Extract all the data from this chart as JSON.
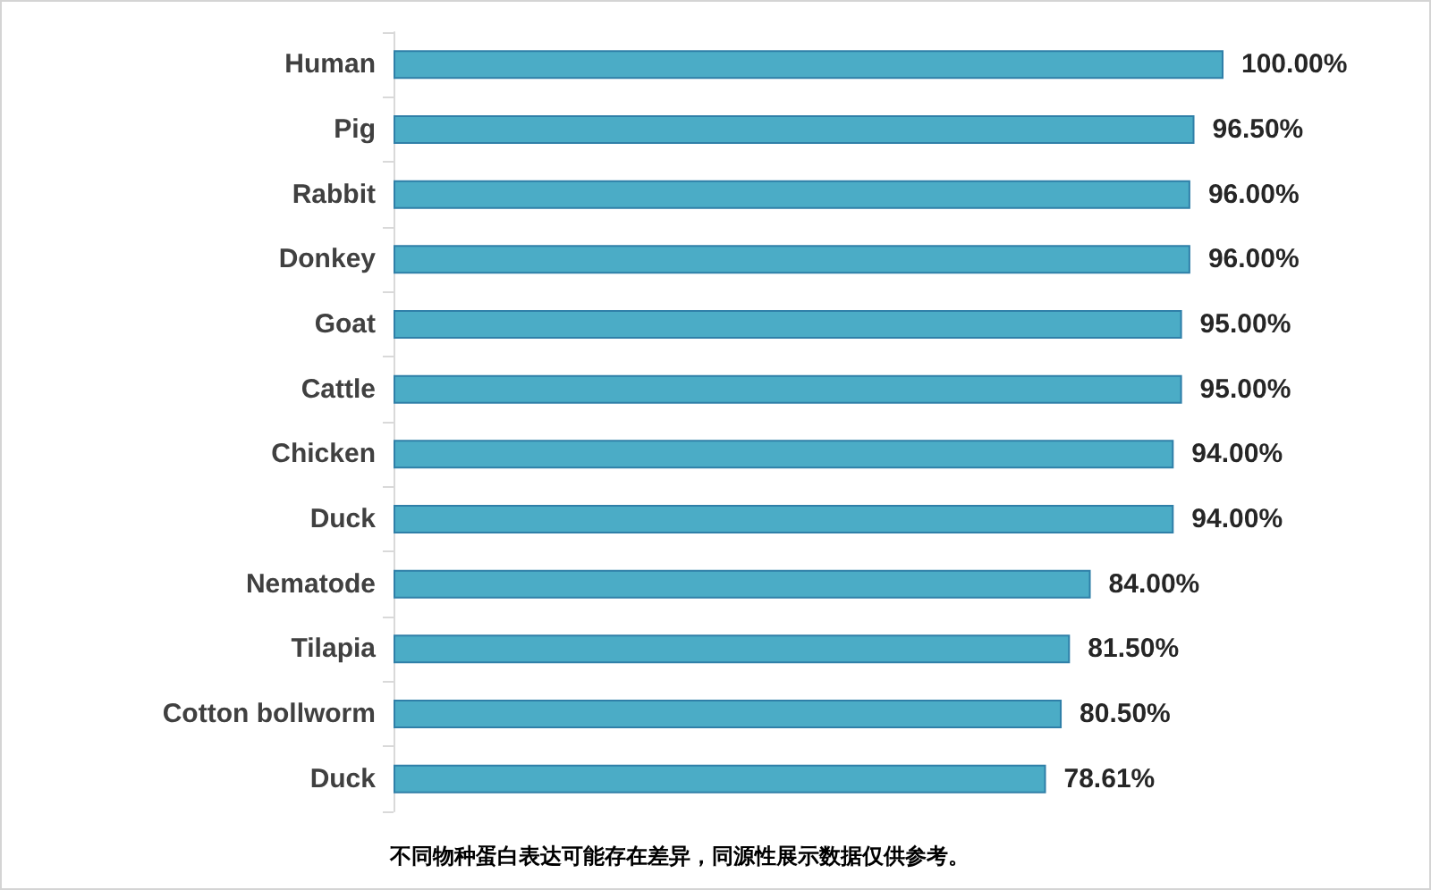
{
  "chart_data": {
    "type": "bar",
    "orientation": "horizontal",
    "categories": [
      "Human",
      "Pig",
      "Rabbit",
      "Donkey",
      "Goat",
      "Cattle",
      "Chicken",
      "Duck",
      "Nematode",
      "Tilapia",
      "Cotton bollworm",
      "Duck"
    ],
    "values": [
      100,
      96.5,
      96,
      96,
      95,
      95,
      94,
      94,
      84,
      81.5,
      80.5,
      78.61
    ],
    "value_labels": [
      "100.00%",
      "96.50%",
      "96.00%",
      "96.00%",
      "95.00%",
      "95.00%",
      "94.00%",
      "94.00%",
      "84.00%",
      "81.50%",
      "80.50%",
      "78.61%"
    ],
    "color": "#4bacc6",
    "tick_labels": "y",
    "annotations": [
      "不同物种蛋白表达可能存在差异，同源性展示数据仅供参考。"
    ]
  }
}
